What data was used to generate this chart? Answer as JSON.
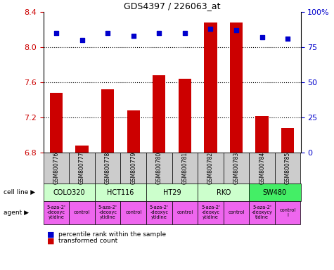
{
  "title": "GDS4397 / 226063_at",
  "samples": [
    "GSM800776",
    "GSM800777",
    "GSM800778",
    "GSM800779",
    "GSM800780",
    "GSM800781",
    "GSM800782",
    "GSM800783",
    "GSM800784",
    "GSM800785"
  ],
  "red_values": [
    7.48,
    6.88,
    7.52,
    7.28,
    7.68,
    7.64,
    8.28,
    8.28,
    7.22,
    7.08
  ],
  "blue_values": [
    85,
    80,
    85,
    83,
    85,
    85,
    88,
    87,
    82,
    81
  ],
  "ylim_left": [
    6.8,
    8.4
  ],
  "ylim_right": [
    0,
    100
  ],
  "yticks_left": [
    6.8,
    7.2,
    7.6,
    8.0,
    8.4
  ],
  "yticks_right": [
    0,
    25,
    50,
    75,
    100
  ],
  "cell_lines": [
    {
      "label": "COLO320",
      "start": 0,
      "end": 2,
      "color": "#ccffcc"
    },
    {
      "label": "HCT116",
      "start": 2,
      "end": 4,
      "color": "#ccffcc"
    },
    {
      "label": "HT29",
      "start": 4,
      "end": 6,
      "color": "#ccffcc"
    },
    {
      "label": "RKO",
      "start": 6,
      "end": 8,
      "color": "#ccffcc"
    },
    {
      "label": "SW480",
      "start": 8,
      "end": 10,
      "color": "#44ee66"
    }
  ],
  "agents": [
    {
      "label": "5-aza-2'\n-deoxyc\nytidine",
      "start": 0,
      "end": 1,
      "color": "#ee66ee"
    },
    {
      "label": "control",
      "start": 1,
      "end": 2,
      "color": "#ee66ee"
    },
    {
      "label": "5-aza-2'\n-deoxyc\nytidine",
      "start": 2,
      "end": 3,
      "color": "#ee66ee"
    },
    {
      "label": "control",
      "start": 3,
      "end": 4,
      "color": "#ee66ee"
    },
    {
      "label": "5-aza-2'\n-deoxyc\nytidine",
      "start": 4,
      "end": 5,
      "color": "#ee66ee"
    },
    {
      "label": "control",
      "start": 5,
      "end": 6,
      "color": "#ee66ee"
    },
    {
      "label": "5-aza-2'\n-deoxyc\nytidine",
      "start": 6,
      "end": 7,
      "color": "#ee66ee"
    },
    {
      "label": "control",
      "start": 7,
      "end": 8,
      "color": "#ee66ee"
    },
    {
      "label": "5-aza-2'\n-deoxycy\ntidine",
      "start": 8,
      "end": 9,
      "color": "#ee66ee"
    },
    {
      "label": "control\nl",
      "start": 9,
      "end": 10,
      "color": "#ee66ee"
    }
  ],
  "bar_color": "#cc0000",
  "dot_color": "#0000cc",
  "grid_color": "#000000",
  "background_color": "#ffffff",
  "sample_bg_color": "#cccccc"
}
